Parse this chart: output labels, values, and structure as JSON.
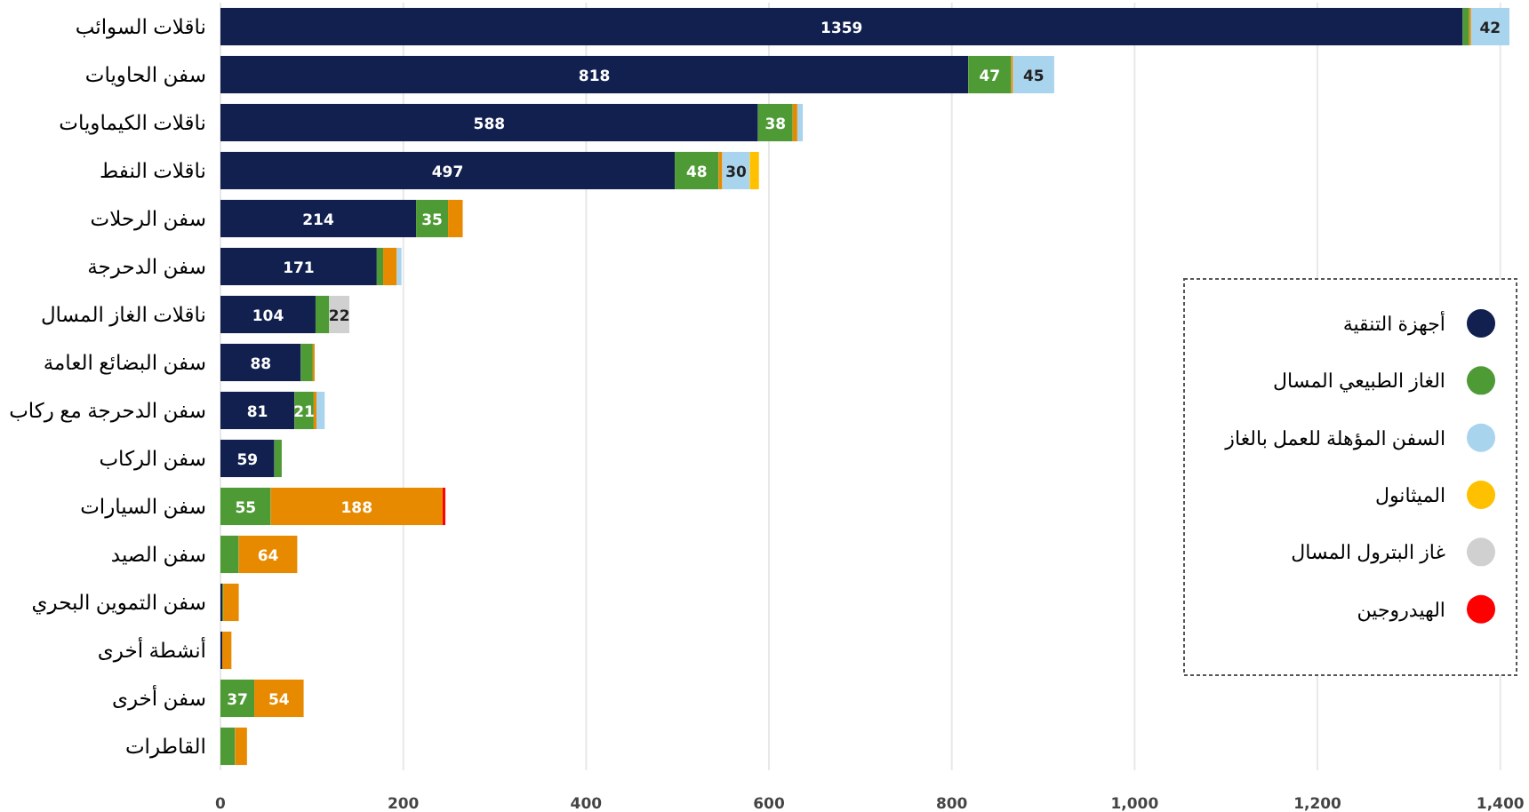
{
  "chart_data": {
    "type": "bar",
    "orientation": "horizontal",
    "stacked": true,
    "grid": "x",
    "legend": "right",
    "categories": [
      "ناقلات السوائب",
      "سفن الحاويات",
      "ناقلات الكيماويات",
      "ناقلات النفط",
      "سفن الرحلات",
      "سفن الدحرجة",
      "ناقلات الغاز المسال",
      "سفن البضائع العامة",
      "سفن الدحرجة مع ركاب",
      "سفن الركاب",
      "سفن السيارات",
      "سفن الصيد",
      "سفن التموين البحري",
      "أنشطة أخرى",
      "سفن أخرى",
      "القاطرات"
    ],
    "series": [
      {
        "name": "أجهزة التنقية",
        "color": "#11204f",
        "values": [
          1359,
          818,
          588,
          497,
          214,
          171,
          104,
          88,
          81,
          59,
          null,
          null,
          2,
          2,
          null,
          null
        ],
        "value_labels": [
          "1359",
          "818",
          "588",
          "497",
          "214",
          "171",
          "104",
          "88",
          "81",
          "59",
          null,
          null,
          null,
          null,
          null,
          null
        ]
      },
      {
        "name": "الغاز الطبيعي المسال",
        "color": "#4e9a35",
        "values": [
          7,
          47,
          38,
          48,
          35,
          7,
          15,
          13,
          21,
          8,
          55,
          20,
          1,
          null,
          37,
          16
        ],
        "value_labels": [
          null,
          "47",
          "38",
          "48",
          "35",
          null,
          null,
          null,
          "21",
          null,
          "55",
          null,
          null,
          null,
          "37",
          null
        ]
      },
      {
        "color": "#e88a00",
        "values": [
          2,
          2,
          5,
          4,
          16,
          15,
          null,
          2,
          3,
          null,
          188,
          64,
          17,
          10,
          54,
          13
        ],
        "value_labels": [
          null,
          null,
          null,
          null,
          null,
          null,
          null,
          null,
          null,
          null,
          "188",
          "64",
          null,
          null,
          "54",
          null
        ]
      },
      {
        "name": "السفن المؤهلة للعمل بالغاز",
        "color": "#a9d4ee",
        "values": [
          42,
          45,
          6,
          30,
          null,
          5,
          null,
          null,
          9,
          null,
          null,
          null,
          null,
          null,
          null,
          null
        ],
        "value_labels": [
          "42",
          "45",
          null,
          "30",
          null,
          null,
          null,
          null,
          null,
          null,
          null,
          null,
          null,
          null,
          null,
          null
        ]
      },
      {
        "name": "الميثانول",
        "color": "#ffc000",
        "values": [
          null,
          null,
          null,
          10,
          null,
          null,
          null,
          null,
          null,
          null,
          null,
          null,
          null,
          null,
          null,
          null
        ],
        "value_labels": [
          null,
          null,
          null,
          null,
          null,
          null,
          null,
          null,
          null,
          null,
          null,
          null,
          null,
          null,
          null,
          null
        ]
      },
      {
        "name": "غاز البترول المسال",
        "color": "#d0d0d0",
        "values": [
          null,
          null,
          null,
          null,
          null,
          null,
          22,
          null,
          null,
          null,
          null,
          null,
          null,
          null,
          null,
          null
        ],
        "value_labels": [
          null,
          null,
          null,
          null,
          null,
          null,
          "22",
          null,
          null,
          null,
          null,
          null,
          null,
          null,
          null,
          null
        ]
      },
      {
        "name": "الهيدروجين",
        "color": "#ff0000",
        "values": [
          null,
          null,
          null,
          null,
          null,
          null,
          null,
          null,
          null,
          null,
          3,
          null,
          null,
          null,
          null,
          null
        ],
        "value_labels": [
          null,
          null,
          null,
          null,
          null,
          null,
          null,
          null,
          null,
          null,
          null,
          null,
          null,
          null,
          null,
          null
        ]
      }
    ],
    "xlim": [
      0,
      1410
    ],
    "xticks": [
      0,
      200,
      400,
      600,
      800,
      {
        "value": 1000,
        "label": "1,000"
      },
      {
        "value": 1200,
        "label": "1,200"
      },
      {
        "value": 1400,
        "label": "1,400"
      }
    ]
  }
}
